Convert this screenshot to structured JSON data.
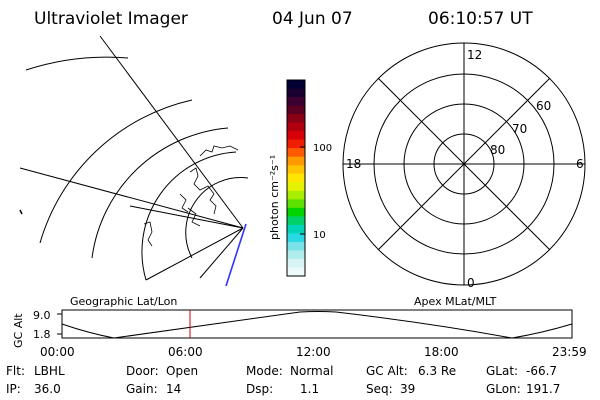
{
  "header": {
    "instrument": "Ultraviolet Imager",
    "date": "04 Jun 07",
    "time": "06:10:57 UT"
  },
  "colorbar": {
    "unit_label": "photon cm⁻²s⁻¹",
    "ticks": [
      "100",
      "10"
    ],
    "colors": [
      "#000033",
      "#1a0030",
      "#3b0030",
      "#5a0022",
      "#8a0014",
      "#b00010",
      "#d8000a",
      "#f01e00",
      "#ff5a00",
      "#ff9a00",
      "#ffc400",
      "#ffe600",
      "#e4f200",
      "#a8ec00",
      "#5ee000",
      "#00d400",
      "#00d06a",
      "#00d4b8",
      "#28d8e2",
      "#78e2e8",
      "#b0ecee",
      "#d6f4f4",
      "#ecfafa"
    ]
  },
  "polar_plot": {
    "hour_labels": [
      "12",
      "18",
      "6",
      "0"
    ],
    "lat_labels": [
      "60",
      "70",
      "80"
    ]
  },
  "timeline": {
    "left_label": "Geographic Lat/Lon",
    "right_label": "Apex MLat/MLT",
    "axis_title": "GC Alt",
    "y_ticks": [
      "9.0",
      "1.8"
    ],
    "x_ticks": [
      "00:00",
      "06:00",
      "12:00",
      "18:00",
      "23:59"
    ],
    "marker_color": "#cc0000"
  },
  "status": {
    "flt_label": "Flt:",
    "flt_value": "LBHL",
    "ip_label": "IP:",
    "ip_value": "36.0",
    "door_label": "Door:",
    "door_value": "Open",
    "gain_label": "Gain:",
    "gain_value": "14",
    "mode_label": "Mode:",
    "mode_value": "Normal",
    "dsp_label": "Dsp:",
    "dsp_value": "1.1",
    "gcalt_label": "GC Alt:",
    "gcalt_value": "6.3 Re",
    "seq_label": "Seq:",
    "seq_value": "39",
    "glat_label": "GLat:",
    "glat_value": "-66.7",
    "glon_label": "GLon:",
    "glon_value": "191.7"
  }
}
